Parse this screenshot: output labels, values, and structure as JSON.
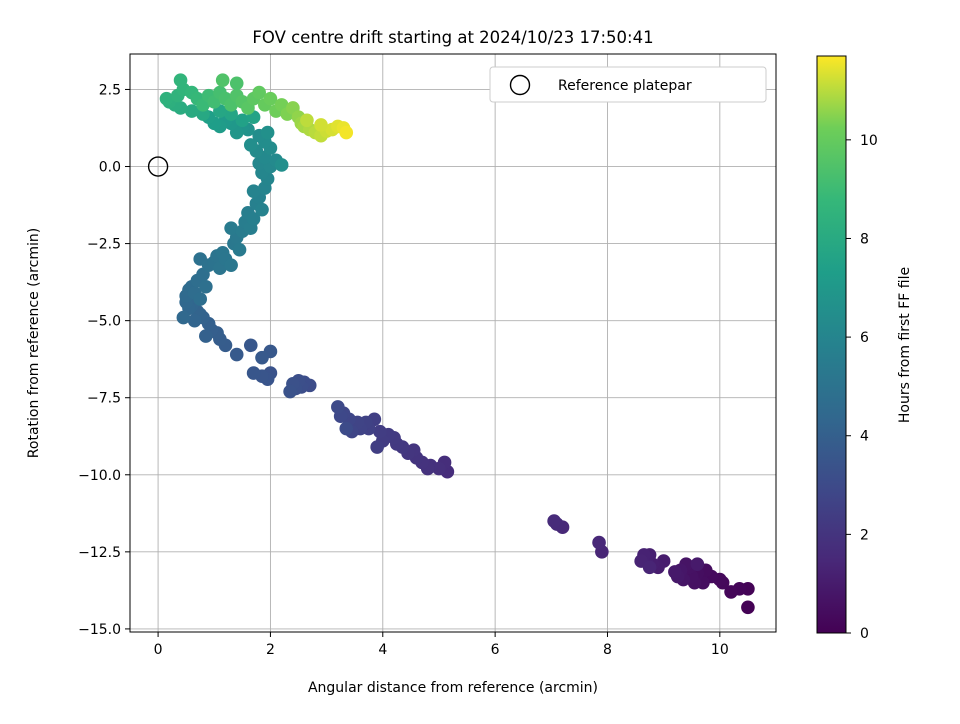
{
  "chart_data": {
    "type": "scatter",
    "title": "FOV centre drift starting at 2024/10/23 17:50:41",
    "xlabel": "Angular distance from reference (arcmin)",
    "ylabel": "Rotation from reference (arcmin)",
    "colorbar_label": "Hours from first FF file",
    "xlim": [
      -0.5,
      11.0
    ],
    "ylim": [
      -15.1,
      3.65
    ],
    "clim": [
      0,
      11.7
    ],
    "colormap": "viridis",
    "grid": true,
    "legend_position": "top-right",
    "x_ticks": [
      0,
      2,
      4,
      6,
      8,
      10
    ],
    "x_tick_labels": [
      "0",
      "2",
      "4",
      "6",
      "8",
      "10"
    ],
    "y_ticks": [
      2.5,
      0.0,
      -2.5,
      -5.0,
      -7.5,
      -10.0,
      -12.5,
      -15.0
    ],
    "y_tick_labels": [
      "2.5",
      "0.0",
      "−2.5",
      "−5.0",
      "−7.5",
      "−10.0",
      "−12.5",
      "−15.0"
    ],
    "colorbar_ticks": [
      0,
      2,
      4,
      6,
      8,
      10
    ],
    "colorbar_tick_labels": [
      "0",
      "2",
      "4",
      "6",
      "8",
      "10"
    ],
    "reference": {
      "name": "Reference platepar",
      "x": 0.0,
      "y": 0.0
    },
    "series": [
      {
        "points": [
          [
            10.5,
            -14.3,
            0.05
          ],
          [
            10.5,
            -13.7,
            0.1
          ],
          [
            10.35,
            -13.7,
            0.15
          ],
          [
            10.2,
            -13.8,
            0.2
          ],
          [
            10.05,
            -13.5,
            0.25
          ],
          [
            10.0,
            -13.4,
            0.3
          ],
          [
            9.85,
            -13.3,
            0.35
          ],
          [
            9.75,
            -13.1,
            0.4
          ],
          [
            9.7,
            -13.5,
            0.45
          ],
          [
            9.6,
            -13.2,
            0.5
          ],
          [
            9.55,
            -13.5,
            0.55
          ],
          [
            9.5,
            -13.3,
            0.6
          ],
          [
            9.45,
            -13.0,
            0.65
          ],
          [
            9.4,
            -12.9,
            0.7
          ],
          [
            9.35,
            -13.4,
            0.75
          ],
          [
            9.3,
            -13.1,
            0.8
          ],
          [
            9.25,
            -13.3,
            0.85
          ],
          [
            9.2,
            -13.15,
            0.9
          ],
          [
            9.6,
            -12.9,
            0.95
          ],
          [
            9.0,
            -12.8,
            1.0
          ],
          [
            8.9,
            -13.0,
            1.05
          ],
          [
            8.8,
            -12.9,
            1.1
          ],
          [
            8.75,
            -12.6,
            1.15
          ],
          [
            8.7,
            -12.7,
            1.2
          ],
          [
            8.65,
            -12.6,
            1.25
          ],
          [
            8.6,
            -12.8,
            1.3
          ],
          [
            8.75,
            -13.0,
            1.35
          ],
          [
            7.9,
            -12.5,
            1.4
          ],
          [
            7.85,
            -12.2,
            1.45
          ],
          [
            7.2,
            -11.7,
            1.5
          ],
          [
            7.1,
            -11.6,
            1.55
          ],
          [
            7.05,
            -11.5,
            1.6
          ],
          [
            5.15,
            -9.9,
            1.7
          ],
          [
            5.1,
            -9.6,
            1.75
          ],
          [
            5.0,
            -9.8,
            1.8
          ],
          [
            4.85,
            -9.7,
            1.85
          ],
          [
            4.8,
            -9.8,
            1.9
          ],
          [
            4.7,
            -9.6,
            1.95
          ],
          [
            4.6,
            -9.45,
            2.0
          ],
          [
            4.55,
            -9.2,
            2.05
          ],
          [
            4.45,
            -9.3,
            2.1
          ],
          [
            4.35,
            -9.1,
            2.15
          ],
          [
            4.25,
            -9.0,
            2.2
          ],
          [
            4.2,
            -8.8,
            2.25
          ],
          [
            4.1,
            -8.7,
            2.3
          ],
          [
            4.0,
            -8.9,
            2.35
          ],
          [
            3.95,
            -8.6,
            2.4
          ],
          [
            3.9,
            -9.1,
            2.45
          ],
          [
            3.85,
            -8.2,
            2.5
          ],
          [
            3.75,
            -8.5,
            2.55
          ],
          [
            3.7,
            -8.3,
            2.6
          ],
          [
            3.6,
            -8.5,
            2.65
          ],
          [
            3.55,
            -8.3,
            2.7
          ],
          [
            3.45,
            -8.6,
            2.75
          ],
          [
            3.4,
            -8.2,
            2.8
          ],
          [
            3.3,
            -8.0,
            2.85
          ],
          [
            3.25,
            -8.1,
            2.9
          ],
          [
            3.2,
            -7.8,
            2.95
          ],
          [
            3.35,
            -8.5,
            3.0
          ],
          [
            2.7,
            -7.1,
            3.05
          ],
          [
            2.6,
            -7.0,
            3.1
          ],
          [
            2.55,
            -7.15,
            3.15
          ],
          [
            2.5,
            -6.95,
            3.2
          ],
          [
            2.45,
            -7.2,
            3.25
          ],
          [
            2.4,
            -7.05,
            3.3
          ],
          [
            2.35,
            -7.3,
            3.35
          ],
          [
            2.0,
            -6.7,
            3.4
          ],
          [
            1.95,
            -6.9,
            3.45
          ],
          [
            1.85,
            -6.8,
            3.5
          ],
          [
            1.7,
            -6.7,
            3.55
          ],
          [
            1.65,
            -5.8,
            3.6
          ],
          [
            2.0,
            -6.0,
            3.65
          ],
          [
            1.85,
            -6.2,
            3.7
          ],
          [
            1.4,
            -6.1,
            3.75
          ],
          [
            1.2,
            -5.8,
            3.8
          ],
          [
            1.1,
            -5.6,
            3.85
          ],
          [
            1.05,
            -5.4,
            3.9
          ],
          [
            0.95,
            -5.3,
            3.95
          ],
          [
            0.9,
            -5.1,
            4.0
          ],
          [
            0.85,
            -5.5,
            4.05
          ],
          [
            0.8,
            -4.9,
            4.1
          ],
          [
            0.75,
            -4.8,
            4.15
          ],
          [
            0.7,
            -4.7,
            4.2
          ],
          [
            0.65,
            -5.0,
            4.25
          ],
          [
            0.6,
            -4.5,
            4.3
          ],
          [
            0.55,
            -4.6,
            4.35
          ],
          [
            0.5,
            -4.4,
            4.4
          ],
          [
            0.45,
            -4.9,
            4.45
          ],
          [
            0.5,
            -4.2,
            4.5
          ],
          [
            0.55,
            -4.0,
            4.55
          ],
          [
            0.6,
            -3.9,
            4.6
          ],
          [
            0.65,
            -4.1,
            4.65
          ],
          [
            0.7,
            -3.7,
            4.7
          ],
          [
            0.75,
            -4.3,
            4.75
          ],
          [
            0.8,
            -3.5,
            4.8
          ],
          [
            0.85,
            -3.9,
            4.85
          ],
          [
            0.75,
            -3.0,
            4.9
          ],
          [
            0.9,
            -3.2,
            4.95
          ],
          [
            1.0,
            -3.1,
            5.0
          ],
          [
            1.05,
            -2.9,
            5.05
          ],
          [
            1.1,
            -3.3,
            5.1
          ],
          [
            1.15,
            -2.8,
            5.15
          ],
          [
            1.2,
            -3.0,
            5.2
          ],
          [
            1.3,
            -3.2,
            5.25
          ],
          [
            1.35,
            -2.5,
            5.3
          ],
          [
            1.4,
            -2.3,
            5.35
          ],
          [
            1.45,
            -2.7,
            5.4
          ],
          [
            1.3,
            -2.0,
            5.45
          ],
          [
            1.5,
            -2.1,
            5.5
          ],
          [
            1.55,
            -1.8,
            5.55
          ],
          [
            1.6,
            -1.5,
            5.6
          ],
          [
            1.65,
            -2.0,
            5.65
          ],
          [
            1.7,
            -1.7,
            5.7
          ],
          [
            1.75,
            -1.2,
            5.75
          ],
          [
            1.8,
            -1.0,
            5.8
          ],
          [
            1.85,
            -1.4,
            5.85
          ],
          [
            1.7,
            -0.8,
            5.9
          ],
          [
            1.9,
            -0.7,
            5.95
          ],
          [
            1.95,
            -0.4,
            6.0
          ],
          [
            1.85,
            -0.2,
            6.05
          ],
          [
            1.8,
            0.1,
            6.1
          ],
          [
            2.0,
            0.0,
            6.15
          ],
          [
            1.9,
            0.3,
            6.2
          ],
          [
            2.1,
            0.2,
            6.25
          ],
          [
            1.75,
            0.5,
            6.3
          ],
          [
            2.0,
            0.6,
            6.35
          ],
          [
            1.9,
            0.8,
            6.4
          ],
          [
            1.8,
            1.0,
            6.45
          ],
          [
            1.65,
            0.7,
            6.5
          ],
          [
            2.2,
            0.05,
            6.55
          ],
          [
            1.95,
            1.1,
            6.6
          ],
          [
            1.6,
            1.2,
            6.7
          ],
          [
            1.5,
            1.3,
            6.8
          ],
          [
            1.4,
            1.1,
            6.9
          ],
          [
            1.3,
            1.4,
            7.0
          ],
          [
            1.2,
            1.5,
            7.1
          ],
          [
            1.1,
            1.3,
            7.2
          ],
          [
            1.0,
            1.4,
            7.3
          ],
          [
            0.9,
            1.6,
            7.4
          ],
          [
            1.5,
            1.5,
            7.5
          ],
          [
            1.7,
            1.6,
            7.6
          ],
          [
            1.3,
            1.7,
            7.7
          ],
          [
            1.1,
            1.8,
            7.8
          ],
          [
            0.8,
            1.7,
            7.9
          ],
          [
            0.6,
            1.8,
            8.0
          ],
          [
            0.4,
            1.9,
            8.1
          ],
          [
            0.3,
            2.0,
            8.2
          ],
          [
            0.2,
            2.1,
            8.3
          ],
          [
            0.15,
            2.2,
            8.4
          ],
          [
            0.35,
            2.3,
            8.5
          ],
          [
            0.45,
            2.5,
            8.6
          ],
          [
            0.6,
            2.4,
            8.7
          ],
          [
            0.7,
            2.2,
            8.8
          ],
          [
            0.8,
            2.0,
            8.9
          ],
          [
            0.9,
            2.3,
            9.0
          ],
          [
            1.0,
            2.1,
            9.1
          ],
          [
            1.1,
            2.4,
            9.2
          ],
          [
            1.2,
            2.2,
            9.3
          ],
          [
            1.3,
            2.0,
            9.4
          ],
          [
            1.4,
            2.3,
            9.5
          ],
          [
            1.5,
            2.1,
            9.6
          ],
          [
            1.6,
            1.9,
            9.7
          ],
          [
            1.7,
            2.2,
            9.8
          ],
          [
            1.8,
            2.4,
            9.9
          ],
          [
            1.9,
            2.0,
            10.0
          ],
          [
            2.0,
            2.2,
            10.1
          ],
          [
            2.1,
            1.8,
            10.2
          ],
          [
            2.2,
            2.0,
            10.3
          ],
          [
            2.3,
            1.7,
            10.4
          ],
          [
            2.4,
            1.9,
            10.5
          ],
          [
            2.5,
            1.6,
            10.6
          ],
          [
            2.55,
            1.4,
            10.7
          ],
          [
            2.6,
            1.3,
            10.8
          ],
          [
            2.7,
            1.2,
            10.9
          ],
          [
            2.8,
            1.1,
            11.0
          ],
          [
            2.9,
            1.0,
            11.1
          ],
          [
            3.0,
            1.15,
            11.2
          ],
          [
            3.1,
            1.2,
            11.3
          ],
          [
            3.2,
            1.3,
            11.4
          ],
          [
            3.3,
            1.25,
            11.5
          ],
          [
            3.35,
            1.1,
            11.6
          ],
          [
            2.65,
            1.5,
            11.05
          ],
          [
            2.9,
            1.35,
            11.25
          ],
          [
            0.4,
            2.8,
            8.6
          ],
          [
            1.4,
            2.7,
            9.4
          ],
          [
            1.15,
            2.8,
            9.5
          ]
        ]
      }
    ]
  }
}
